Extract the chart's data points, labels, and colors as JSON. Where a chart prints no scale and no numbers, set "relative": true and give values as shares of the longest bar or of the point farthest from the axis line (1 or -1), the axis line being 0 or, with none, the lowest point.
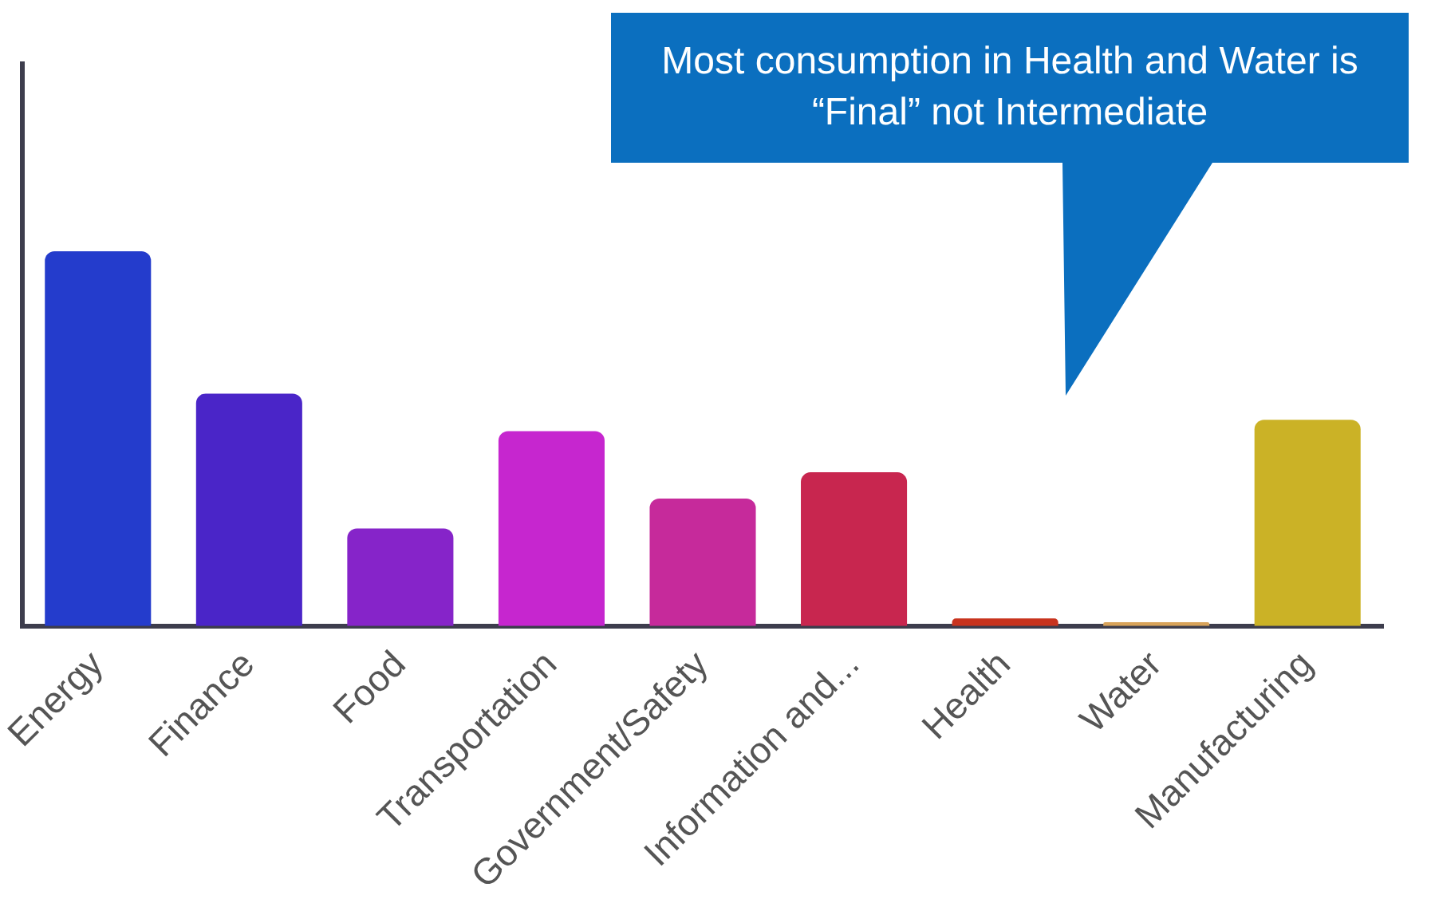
{
  "chart_data": {
    "type": "bar",
    "relative": true,
    "categories": [
      "Energy",
      "Finance",
      "Food",
      "Transportation",
      "Government/Safety",
      "Information and...",
      "Health",
      "Water",
      "Manufacturing"
    ],
    "values": [
      1,
      0.62,
      0.26,
      0.52,
      0.34,
      0.41,
      0.02,
      0.01,
      0.55
    ],
    "colors": [
      "#243ccc",
      "#4a25c8",
      "#8624c9",
      "#c626cf",
      "#c62a9b",
      "#c8264f",
      "#c8331e",
      "#d8a35a",
      "#cbb226"
    ],
    "legend": false,
    "tick_labels": "x",
    "annotations": [
      "Most consumption in Health and Water  is “Final” not Intermediate"
    ]
  }
}
